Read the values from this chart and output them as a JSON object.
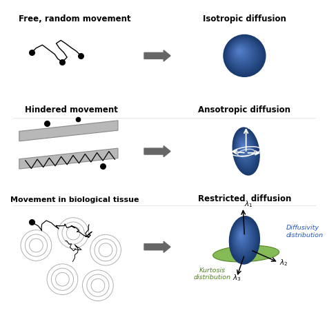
{
  "bg_color": "#ffffff",
  "title_color": "#000000",
  "arrow_color": "#666666",
  "green_color": "#7ab648",
  "blue_dark": "#1a3a6e",
  "blue_mid": "#2a5298",
  "blue_light": "#5580cc",
  "row1_label_left": "Free, random movement",
  "row1_label_right": "Isotropic diffusion",
  "row2_label_left": "Hindered movement",
  "row2_label_right": "Ansotropic diffusion",
  "row3_label_left": "Movement in biological tissue",
  "row3_label_right": "Restricted  diffusion",
  "diffusivity_label": "Diffusivity\ndistribution",
  "kurtosis_label": "Kurtosis\ndistribution",
  "fig_width": 4.74,
  "fig_height": 4.57,
  "dpi": 100
}
